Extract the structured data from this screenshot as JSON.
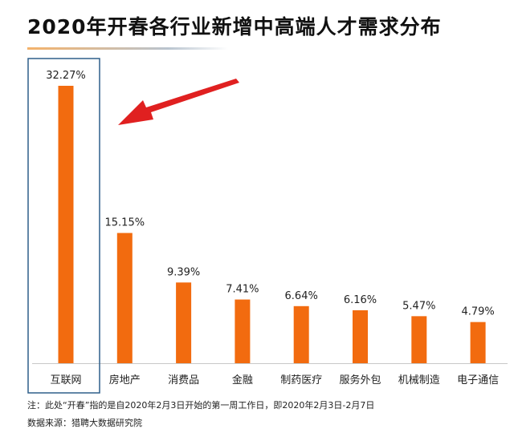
{
  "title": "2020年开春各行业新增中高端人才需求分布",
  "notes": {
    "note": "注：此处“开春”指的是自2020年2月3日开始的第一周工作日，即2020年2月3日-2月7日",
    "source": "数据来源：猎聘大数据研究院"
  },
  "colors": {
    "bar": "#f26b0f",
    "highlight_box": "#2e5f8a",
    "arrow": "#e02020",
    "axis": "#c8c8c8"
  },
  "chart_data": {
    "type": "bar",
    "title": "2020年开春各行业新增中高端人才需求分布",
    "xlabel": "",
    "ylabel": "",
    "categories": [
      "互联网",
      "房地产",
      "消费品",
      "金融",
      "制药医疗",
      "服务外包",
      "机械制造",
      "电子通信"
    ],
    "values": [
      32.27,
      15.15,
      9.39,
      7.41,
      6.64,
      6.16,
      5.47,
      4.79
    ],
    "value_labels": [
      "32.27%",
      "15.15%",
      "9.39%",
      "7.41%",
      "6.64%",
      "6.16%",
      "5.47%",
      "4.79%"
    ],
    "ylim": [
      0,
      32.27
    ],
    "grid": false,
    "legend": "none",
    "highlight_category": "互联网",
    "annotation": "arrow pointing to highlighted bar"
  }
}
